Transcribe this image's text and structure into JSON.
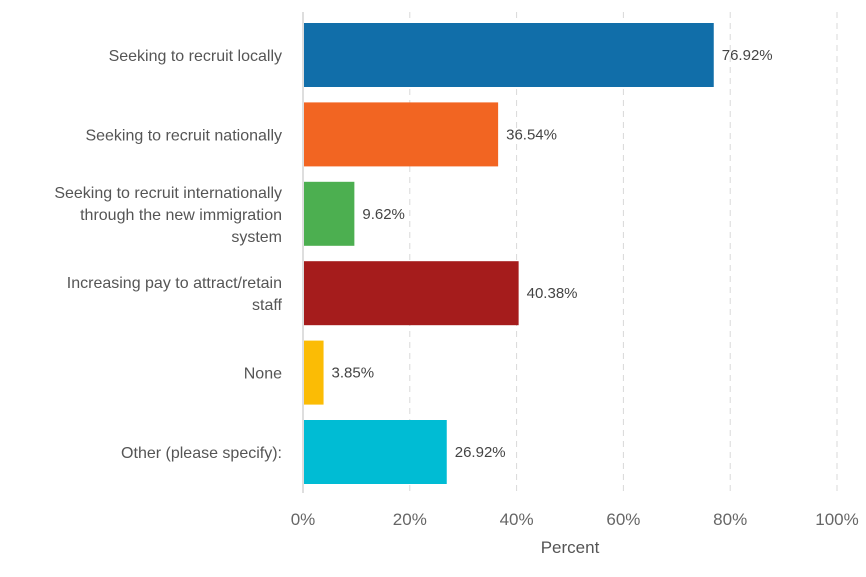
{
  "chart_data": {
    "type": "bar",
    "orientation": "horizontal",
    "categories": [
      [
        "Seeking to recruit locally"
      ],
      [
        "Seeking to recruit nationally"
      ],
      [
        "Seeking to recruit internationally",
        "through the new immigration",
        "system"
      ],
      [
        "Increasing pay to attract/retain",
        "staff"
      ],
      [
        "None"
      ],
      [
        "Other (please specify):"
      ]
    ],
    "values": [
      76.92,
      36.54,
      9.62,
      40.38,
      3.85,
      26.92
    ],
    "value_labels": [
      "76.92%",
      "36.54%",
      "9.62%",
      "40.38%",
      "3.85%",
      "26.92%"
    ],
    "colors": [
      "#116ea9",
      "#f26522",
      "#4caf50",
      "#a51c1c",
      "#fbbc05",
      "#00bcd4"
    ],
    "xlim": [
      0,
      100
    ],
    "xticks": [
      0,
      20,
      40,
      60,
      80,
      100
    ],
    "xtick_labels": [
      "0%",
      "20%",
      "40%",
      "60%",
      "80%",
      "100%"
    ],
    "xlabel": "Percent",
    "grid": "vertical dashed"
  }
}
